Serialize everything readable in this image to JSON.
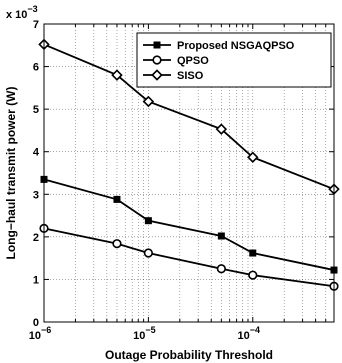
{
  "chart_data": {
    "type": "line",
    "xlabel": "Outage Probability Threshold",
    "ylabel": "Long−haul transmit power (W)",
    "multiplier_label": "x 10",
    "multiplier_exponent": "−3",
    "x_scale": "log",
    "xlim": [
      1e-06,
      0.0006
    ],
    "ylim": [
      0,
      7
    ],
    "y_ticks": [
      0,
      1,
      2,
      3,
      4,
      5,
      6,
      7
    ],
    "y_tick_labels": [
      "0",
      "1",
      "2",
      "3",
      "4",
      "5",
      "6",
      "7"
    ],
    "x_ticks": [
      1e-06,
      1e-05,
      0.0001
    ],
    "x_tick_bases": [
      "10",
      "10",
      "10"
    ],
    "x_tick_exponents": [
      "−6",
      "−5",
      "−4"
    ],
    "grid": true,
    "legend_position": "top-right",
    "x": [
      1e-06,
      5e-06,
      1e-05,
      5e-05,
      0.0001,
      0.0006
    ],
    "series": [
      {
        "name": "Proposed NSGAQPSO",
        "marker": "square",
        "values": [
          3.35,
          2.88,
          2.38,
          2.02,
          1.62,
          1.22
        ]
      },
      {
        "name": "QPSO",
        "marker": "circle",
        "values": [
          2.2,
          1.84,
          1.62,
          1.25,
          1.1,
          0.84
        ]
      },
      {
        "name": "SISO",
        "marker": "diamond",
        "values": [
          6.52,
          5.8,
          5.18,
          4.53,
          3.87,
          3.12
        ]
      }
    ]
  }
}
